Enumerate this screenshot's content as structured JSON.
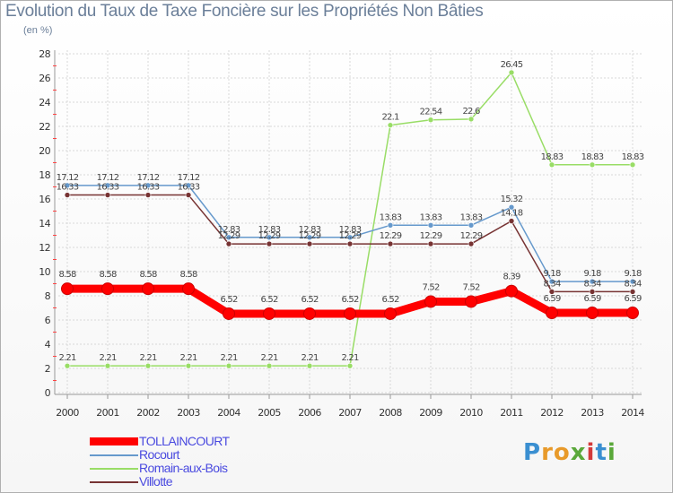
{
  "chart_data": {
    "type": "line",
    "title": "Evolution du Taux de Taxe Foncière sur les Propriétés Non Bâties",
    "subtitle": "(en %)",
    "xlabel": "",
    "ylabel": "",
    "ylim": [
      0,
      28
    ],
    "yticks": [
      "0",
      "2",
      "4",
      "6",
      "8",
      "10",
      "12",
      "14",
      "16",
      "18",
      "20",
      "22",
      "24",
      "26",
      "28"
    ],
    "x": [
      "2000",
      "2001",
      "2002",
      "2003",
      "2004",
      "2005",
      "2006",
      "2007",
      "2008",
      "2009",
      "2010",
      "2011",
      "2012",
      "2013",
      "2014"
    ],
    "grid": true,
    "legend_position": "bottom-left",
    "series": [
      {
        "name": "TOLLAINCOURT",
        "color": "#ff0000",
        "width": 9,
        "values": [
          8.58,
          8.58,
          8.58,
          8.58,
          6.52,
          6.52,
          6.52,
          6.52,
          6.52,
          7.52,
          7.52,
          8.39,
          6.59,
          6.59,
          6.59
        ],
        "labels": [
          "8.58",
          "8.58",
          "8.58",
          "8.58",
          "6.52",
          "6.52",
          "6.52",
          "6.52",
          "6.52",
          "7.52",
          "7.52",
          "8.39",
          "6.59",
          "6.59",
          "6.59"
        ]
      },
      {
        "name": "Rocourt",
        "color": "#6699cc",
        "width": 1.5,
        "values": [
          17.12,
          17.12,
          17.12,
          17.12,
          12.83,
          12.83,
          12.83,
          12.83,
          13.83,
          13.83,
          13.83,
          15.32,
          9.18,
          9.18,
          9.18
        ],
        "labels": [
          "17.12",
          "17.12",
          "17.12",
          "17.12",
          "12.83",
          "12.83",
          "12.83",
          "12.83",
          "13.83",
          "13.83",
          "13.83",
          "15.32",
          "9.18",
          "9.18",
          "9.18"
        ]
      },
      {
        "name": "Romain-aux-Bois",
        "color": "#99dd66",
        "width": 1.5,
        "values": [
          2.21,
          2.21,
          2.21,
          2.21,
          2.21,
          2.21,
          2.21,
          2.21,
          22.1,
          22.54,
          22.6,
          26.45,
          18.83,
          18.83,
          18.83
        ],
        "labels": [
          "2.21",
          "2.21",
          "2.21",
          "2.21",
          "2.21",
          "2.21",
          "2.21",
          "2.21",
          "22.1",
          "22.54",
          "22.6",
          "26.45",
          "18.83",
          "18.83",
          "18.83"
        ]
      },
      {
        "name": "Villotte",
        "color": "#773333",
        "width": 1.5,
        "values": [
          16.33,
          16.33,
          16.33,
          16.33,
          12.29,
          12.29,
          12.29,
          12.29,
          12.29,
          12.29,
          12.29,
          14.18,
          8.34,
          8.34,
          8.34
        ],
        "labels": [
          "16.33",
          "16.33",
          "16.33",
          "16.33",
          "12.29",
          "12.29",
          "12.29",
          "12.29",
          "12.29",
          "12.29",
          "12.29",
          "14.18",
          "8.34",
          "8.34",
          "8.34"
        ]
      }
    ]
  },
  "branding": {
    "logo_letters": [
      "P",
      "r",
      "o",
      "x",
      "i",
      "t",
      "i"
    ],
    "logo_colors": [
      "#3a8fd1",
      "#e89a2a",
      "#e89a2a",
      "#5aa83a",
      "#d33a3a",
      "#3a8fd1",
      "#5aa83a"
    ]
  }
}
